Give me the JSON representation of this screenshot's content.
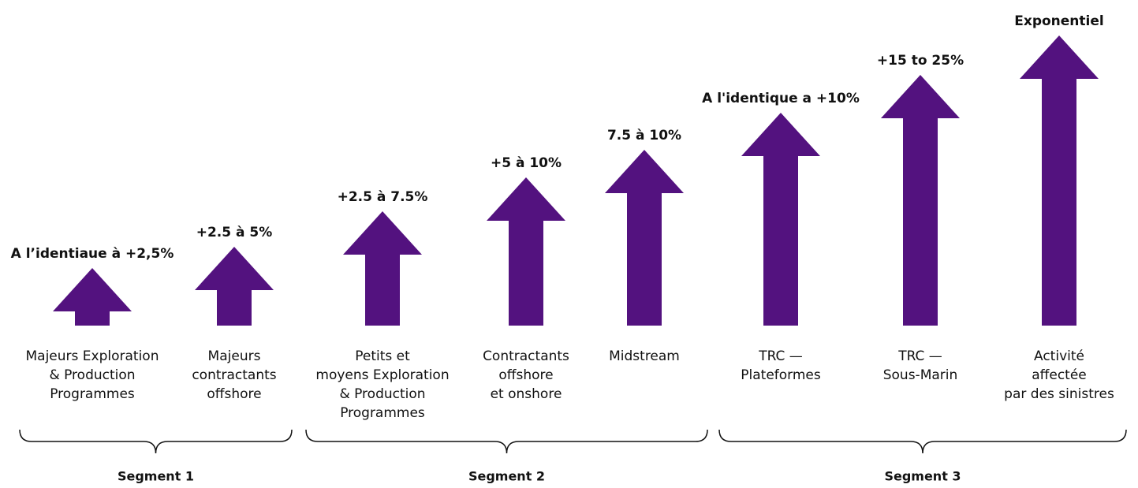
{
  "items": [
    {
      "rate": "A l’identiaue à +2,5%",
      "label": [
        "Majeurs Exploration",
        "& Production",
        "Programmes"
      ]
    },
    {
      "rate": "+2.5 à 5%",
      "label": [
        "Majeurs",
        "contractants",
        "offshore"
      ]
    },
    {
      "rate": "+2.5 à 7.5%",
      "label": [
        "Petits et",
        "moyens Exploration",
        "& Production",
        "Programmes"
      ]
    },
    {
      "rate": "+5 à 10%",
      "label": [
        "Contractants",
        "offshore",
        "et onshore"
      ]
    },
    {
      "rate": "7.5 à 10%",
      "label": [
        "Midstream"
      ]
    },
    {
      "rate": "A l'identique a +10%",
      "label": [
        "TRC —",
        "Plateformes"
      ]
    },
    {
      "rate": "+15 to 25%",
      "label": [
        "TRC —",
        "Sous-Marin"
      ]
    },
    {
      "rate": "Exponentiel",
      "label": [
        "Activité",
        "affectée",
        "par des sinistres"
      ]
    }
  ],
  "segments": [
    {
      "label": "Segment 1"
    },
    {
      "label": "Segment 2"
    },
    {
      "label": "Segment 3"
    }
  ]
}
